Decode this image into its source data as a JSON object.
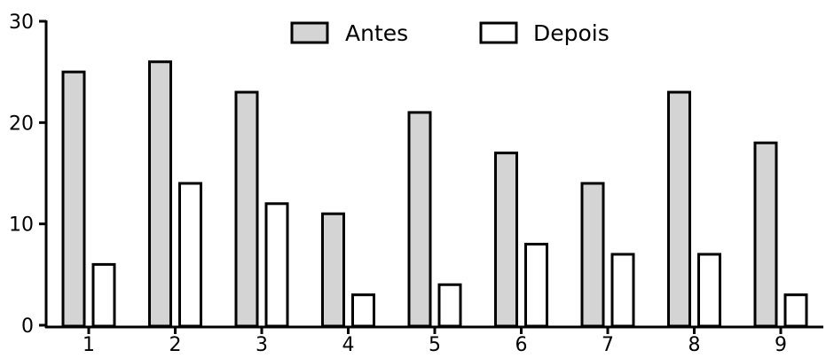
{
  "chart_data": {
    "type": "bar",
    "categories": [
      "1",
      "2",
      "3",
      "4",
      "5",
      "6",
      "7",
      "8",
      "9"
    ],
    "series": [
      {
        "name": "Antes",
        "values": [
          25,
          26,
          23,
          11,
          21,
          17,
          14,
          23,
          18
        ],
        "color": "#d4d4d4"
      },
      {
        "name": "Depois",
        "values": [
          6,
          14,
          12,
          3,
          4,
          8,
          7,
          7,
          3
        ],
        "color": "#ffffff"
      }
    ],
    "title": "",
    "xlabel": "",
    "ylabel": "",
    "ylim": [
      0,
      30
    ],
    "yticks": [
      "0",
      "10",
      "20",
      "30"
    ],
    "grid": false,
    "legend_position": "top-center"
  }
}
